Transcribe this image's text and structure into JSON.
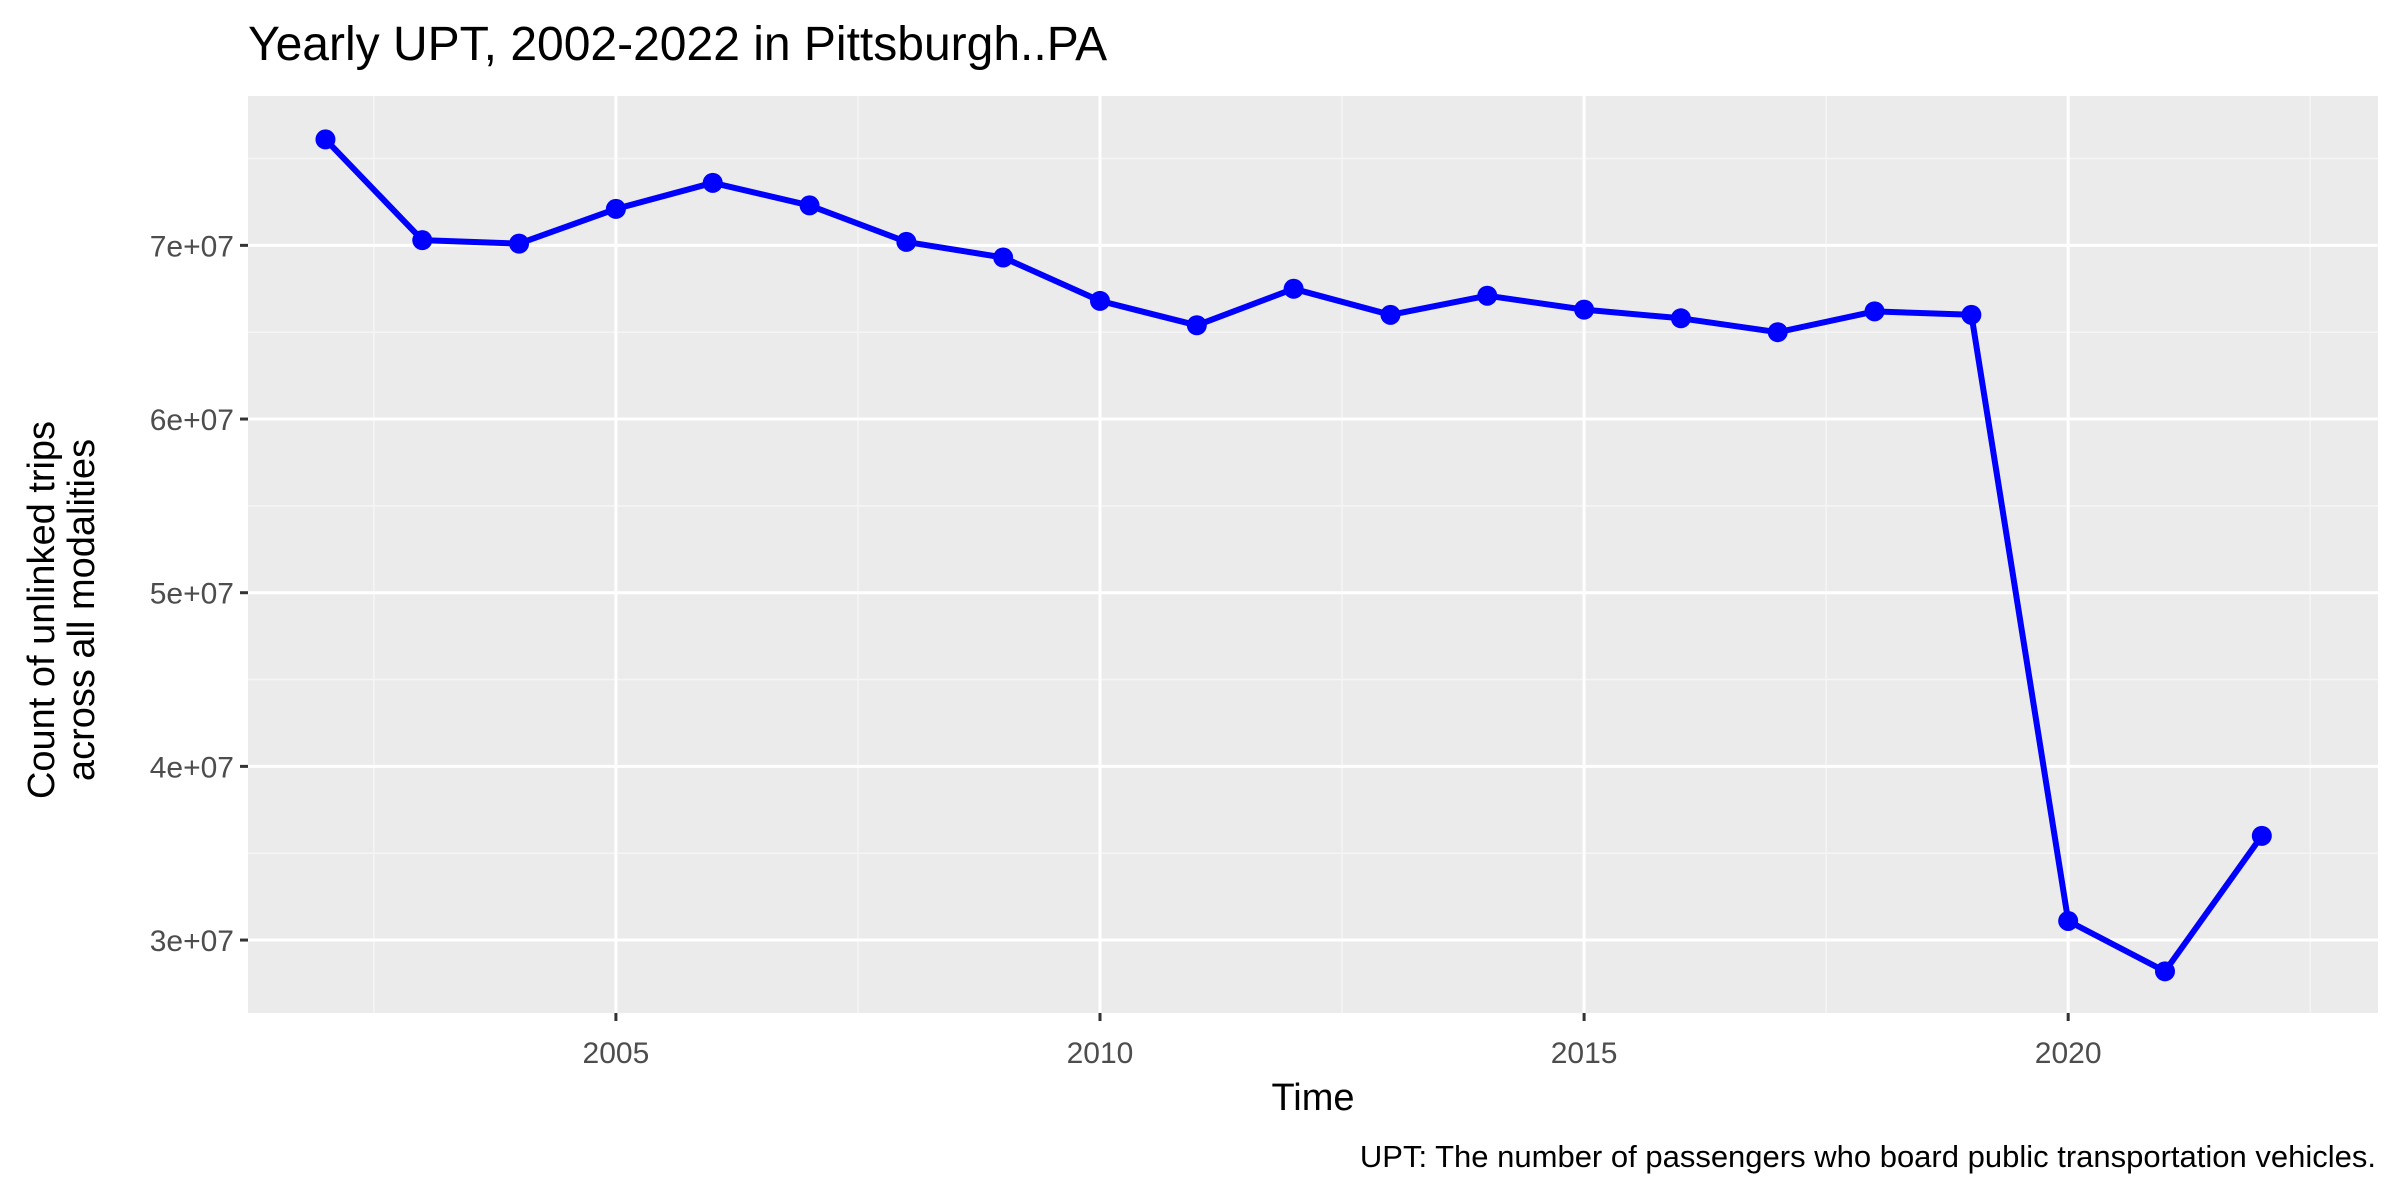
{
  "chart_data": {
    "type": "line",
    "title": "Yearly UPT, 2002-2022 in Pittsburgh..PA",
    "xlabel": "Time",
    "ylabel_lines": [
      "Count of unlinked trips",
      "across all modalities"
    ],
    "caption": "UPT: The number of passengers who board public transportation vehicles.",
    "xlim": [
      2001.2,
      2023.2
    ],
    "ylim": [
      25800000,
      78600000
    ],
    "x_ticks": [
      2005,
      2010,
      2015,
      2020
    ],
    "x_tick_labels": [
      "2005",
      "2010",
      "2015",
      "2020"
    ],
    "x_minor_ticks": [
      2002.5,
      2007.5,
      2012.5,
      2017.5,
      2022.5
    ],
    "y_ticks": [
      30000000,
      40000000,
      50000000,
      60000000,
      70000000
    ],
    "y_tick_labels": [
      "3e+07",
      "4e+07",
      "5e+07",
      "6e+07",
      "7e+07"
    ],
    "y_minor_ticks": [
      35000000,
      45000000,
      55000000,
      65000000,
      75000000
    ],
    "series": [
      {
        "name": "UPT",
        "color": "#0000ff",
        "x": [
          2002,
          2003,
          2004,
          2005,
          2006,
          2007,
          2008,
          2009,
          2010,
          2011,
          2012,
          2013,
          2014,
          2015,
          2016,
          2017,
          2018,
          2019,
          2020,
          2021,
          2022
        ],
        "values": [
          76100000,
          70300000,
          70100000,
          72100000,
          73600000,
          72300000,
          70200000,
          69300000,
          66800000,
          65400000,
          67500000,
          66000000,
          67100000,
          66300000,
          65800000,
          65000000,
          66200000,
          66000000,
          31100000,
          28200000,
          36000000
        ]
      }
    ],
    "colors": {
      "panel_background": "#ebebeb",
      "grid_major": "#ffffff",
      "grid_minor": "#f5f5f5",
      "tick_mark": "#333333"
    }
  }
}
